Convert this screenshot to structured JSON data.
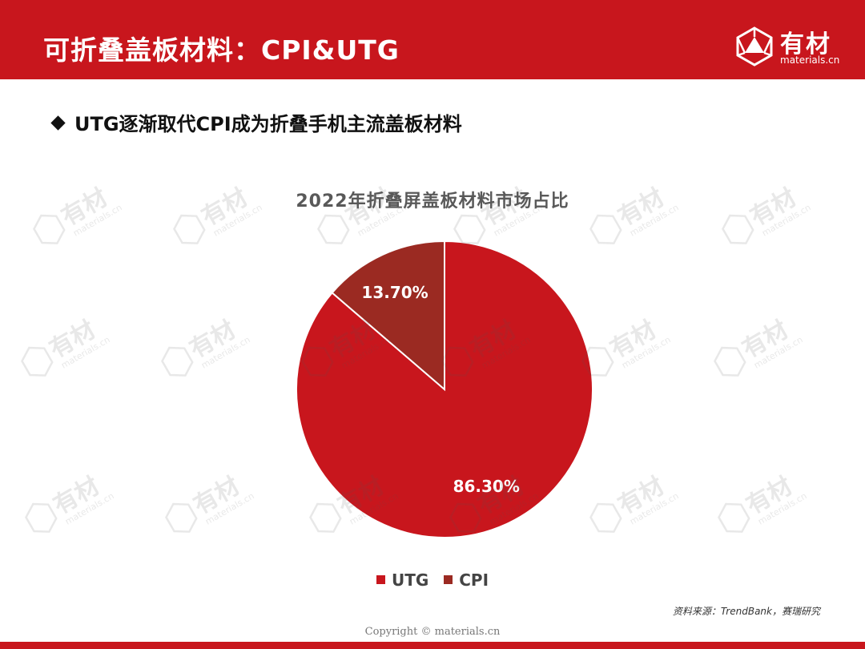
{
  "header": {
    "title": "可折叠盖板材料：CPI&UTG",
    "logo_name": "有材",
    "logo_sub": "materials.cn"
  },
  "subtitle": "UTG逐渐取代CPI成为折叠手机主流盖板材料",
  "chart_data": {
    "type": "pie",
    "title": "2022年折叠屏盖板材料市场占比",
    "categories": [
      "UTG",
      "CPI"
    ],
    "values": [
      86.3,
      13.7
    ],
    "labels": [
      "86.30%",
      "13.70%"
    ],
    "colors": [
      "#c8161d",
      "#9b2a22"
    ],
    "legend_position": "bottom"
  },
  "source": "资料来源：TrendBank，赛瑞研究",
  "copyright": "Copyright © materials.cn",
  "watermark": {
    "name": "有材",
    "sub": "materials.cn"
  },
  "theme": {
    "brand_red": "#c8161d"
  }
}
